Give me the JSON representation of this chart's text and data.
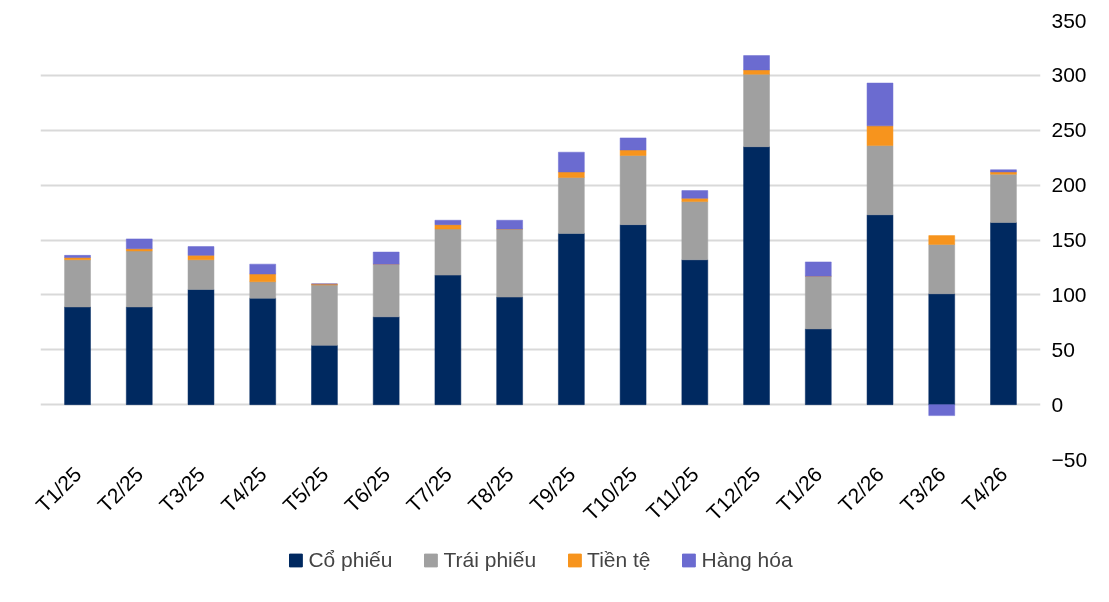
{
  "chart_data": {
    "type": "bar",
    "stacked": true,
    "categories": [
      "T1/25",
      "T2/25",
      "T3/25",
      "T4/25",
      "T5/25",
      "T6/25",
      "T7/25",
      "T8/25",
      "T9/25",
      "T10/25",
      "T11/25",
      "T12/25",
      "T1/26",
      "T2/26",
      "T3/26",
      "T4/26"
    ],
    "series": [
      {
        "name": "Cổ phiếu",
        "color": "#002960",
        "values": [
          89,
          89,
          105,
          97,
          54,
          80,
          118,
          98,
          156,
          164,
          132,
          235,
          69,
          173,
          101,
          166
        ]
      },
      {
        "name": "Trái phiếu",
        "color": "#a0a0a0",
        "values": [
          43,
          51,
          27,
          15,
          55,
          48,
          42,
          62,
          51,
          63,
          53,
          66,
          48,
          63,
          45,
          44
        ]
      },
      {
        "name": "Tiền tệ",
        "color": "#f7941d",
        "values": [
          2,
          2,
          4,
          7,
          1,
          0,
          4,
          0,
          5,
          5,
          3,
          4,
          0,
          18,
          8,
          2
        ]
      },
      {
        "name": "Hàng hóa",
        "color": "#6b6bd0",
        "values": [
          2,
          9,
          8,
          9,
          0,
          11,
          4,
          8,
          18,
          11,
          7,
          13,
          13,
          39,
          -10,
          2
        ]
      }
    ],
    "ylim": [
      -50,
      350
    ],
    "yticks": [
      -50,
      0,
      50,
      100,
      150,
      200,
      250,
      300,
      350
    ],
    "grid": "y",
    "legend": "bottom"
  }
}
